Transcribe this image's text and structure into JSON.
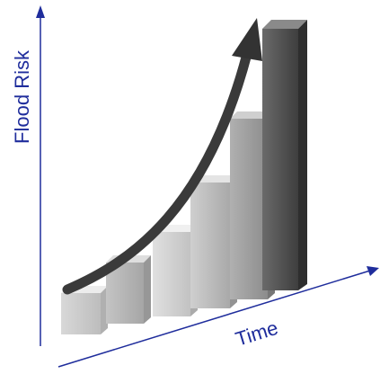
{
  "axes": {
    "y_label": "Flood Risk",
    "x_label": "Time"
  }
}
